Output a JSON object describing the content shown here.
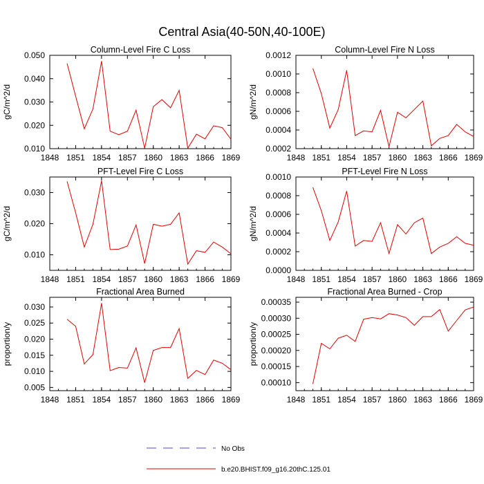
{
  "figure": {
    "title": "Central Asia(40-50N,40-100E)"
  },
  "legend": {
    "placement": "bottom-center",
    "items": [
      {
        "label": "No Obs",
        "color": "#4a4ad8",
        "style": "dashed"
      },
      {
        "label": "b.e20.BHIST.f09_g16.20thC.125.01",
        "color": "#e00000",
        "style": "solid"
      }
    ]
  },
  "chart_data": [
    {
      "type": "line",
      "title": "Column-Level Fire C Loss",
      "ylabel": "gC/m^2/d",
      "xlabel": "",
      "xlim": [
        1848,
        1869
      ],
      "ylim": [
        0.01,
        0.05
      ],
      "x_ticks": [
        "1848",
        "1851",
        "1854",
        "1857",
        "1860",
        "1863",
        "1866",
        "1869"
      ],
      "y_ticks": [
        "0.010",
        "0.020",
        "0.030",
        "0.040",
        "0.050"
      ],
      "series": [
        {
          "color": "#e00000",
          "x": [
            1850,
            1851,
            1852,
            1853,
            1854,
            1855,
            1856,
            1857,
            1858,
            1859,
            1860,
            1861,
            1862,
            1863,
            1864,
            1865,
            1866,
            1867,
            1868,
            1869
          ],
          "values": [
            0.0465,
            0.0325,
            0.0185,
            0.027,
            0.0475,
            0.0175,
            0.016,
            0.0175,
            0.0265,
            0.0102,
            0.028,
            0.031,
            0.0275,
            0.035,
            0.0102,
            0.0162,
            0.0142,
            0.0198,
            0.019,
            0.014
          ]
        }
      ]
    },
    {
      "type": "line",
      "title": "Column-Level Fire N Loss",
      "ylabel": "gN/m^2/d",
      "xlabel": "",
      "xlim": [
        1848,
        1869
      ],
      "ylim": [
        0.0002,
        0.0012
      ],
      "x_ticks": [
        "1848",
        "1851",
        "1854",
        "1857",
        "1860",
        "1863",
        "1866",
        "1869"
      ],
      "y_ticks": [
        "0.0002",
        "0.0004",
        "0.0006",
        "0.0008",
        "0.0010",
        "0.0012"
      ],
      "series": [
        {
          "color": "#e00000",
          "x": [
            1850,
            1851,
            1852,
            1853,
            1854,
            1855,
            1856,
            1857,
            1858,
            1859,
            1860,
            1861,
            1862,
            1863,
            1864,
            1865,
            1866,
            1867,
            1868,
            1869
          ],
          "values": [
            0.00106,
            0.00079,
            0.00042,
            0.00062,
            0.00104,
            0.00034,
            0.00039,
            0.00038,
            0.00061,
            0.00022,
            0.00059,
            0.00053,
            0.00062,
            0.00071,
            0.00023,
            0.00031,
            0.00034,
            0.00046,
            0.00038,
            0.00033
          ]
        }
      ]
    },
    {
      "type": "line",
      "title": "PFT-Level Fire C Loss",
      "ylabel": "gC/m^2/d",
      "xlabel": "",
      "xlim": [
        1848,
        1869
      ],
      "ylim": [
        0.005,
        0.035
      ],
      "x_ticks": [
        "1848",
        "1851",
        "1854",
        "1857",
        "1860",
        "1863",
        "1866",
        "1869"
      ],
      "y_ticks": [
        "0.010",
        "0.020",
        "0.030"
      ],
      "series": [
        {
          "color": "#e00000",
          "x": [
            1850,
            1851,
            1852,
            1853,
            1854,
            1855,
            1856,
            1857,
            1858,
            1859,
            1860,
            1861,
            1862,
            1863,
            1864,
            1865,
            1866,
            1867,
            1868,
            1869
          ],
          "values": [
            0.0336,
            0.0235,
            0.0125,
            0.0198,
            0.0338,
            0.0117,
            0.0118,
            0.0128,
            0.0196,
            0.0072,
            0.0198,
            0.0192,
            0.0198,
            0.0235,
            0.007,
            0.0113,
            0.0108,
            0.0141,
            0.0125,
            0.0103
          ]
        }
      ]
    },
    {
      "type": "line",
      "title": "PFT-Level Fire N Loss",
      "ylabel": "gN/m^2/d",
      "xlabel": "",
      "xlim": [
        1848,
        1869
      ],
      "ylim": [
        0.0,
        0.001
      ],
      "x_ticks": [
        "1848",
        "1851",
        "1854",
        "1857",
        "1860",
        "1863",
        "1866",
        "1869"
      ],
      "y_ticks": [
        "0.0000",
        "0.0002",
        "0.0004",
        "0.0006",
        "0.0008",
        "0.0010"
      ],
      "series": [
        {
          "color": "#e00000",
          "x": [
            1850,
            1851,
            1852,
            1853,
            1854,
            1855,
            1856,
            1857,
            1858,
            1859,
            1860,
            1861,
            1862,
            1863,
            1864,
            1865,
            1866,
            1867,
            1868,
            1869
          ],
          "values": [
            0.00089,
            0.00064,
            0.00032,
            0.00052,
            0.00085,
            0.00026,
            0.00032,
            0.00031,
            0.00051,
            0.00018,
            0.00049,
            0.00039,
            0.00051,
            0.00056,
            0.00018,
            0.00025,
            0.00029,
            0.00036,
            0.00029,
            0.00027
          ]
        }
      ]
    },
    {
      "type": "line",
      "title": "Fractional Area Burned",
      "ylabel": "proportion/y",
      "xlabel": "",
      "xlim": [
        1848,
        1869
      ],
      "ylim": [
        0.004,
        0.033
      ],
      "x_ticks": [
        "1848",
        "1851",
        "1854",
        "1857",
        "1860",
        "1863",
        "1866",
        "1869"
      ],
      "y_ticks": [
        "0.005",
        "0.010",
        "0.015",
        "0.020",
        "0.025",
        "0.030"
      ],
      "series": [
        {
          "color": "#e00000",
          "x": [
            1850,
            1851,
            1852,
            1853,
            1854,
            1855,
            1856,
            1857,
            1858,
            1859,
            1860,
            1861,
            1862,
            1863,
            1864,
            1865,
            1866,
            1867,
            1868,
            1869
          ],
          "values": [
            0.0262,
            0.024,
            0.0123,
            0.0152,
            0.0312,
            0.0102,
            0.0112,
            0.011,
            0.0173,
            0.0065,
            0.0165,
            0.0174,
            0.0174,
            0.0233,
            0.0078,
            0.0103,
            0.009,
            0.0135,
            0.0125,
            0.0105
          ]
        }
      ]
    },
    {
      "type": "line",
      "title": "Fractional Area Burned - Crop",
      "ylabel": "proportion/y",
      "xlabel": "",
      "xlim": [
        1848,
        1869
      ],
      "ylim": [
        7.5e-05,
        0.000365
      ],
      "x_ticks": [
        "1848",
        "1851",
        "1854",
        "1857",
        "1860",
        "1863",
        "1866",
        "1869"
      ],
      "y_ticks": [
        "0.00010",
        "0.00015",
        "0.00020",
        "0.00025",
        "0.00030",
        "0.00035"
      ],
      "series": [
        {
          "color": "#e00000",
          "x": [
            1850,
            1851,
            1852,
            1853,
            1854,
            1855,
            1856,
            1857,
            1858,
            1859,
            1860,
            1861,
            1862,
            1863,
            1864,
            1865,
            1866,
            1867,
            1868,
            1869
          ],
          "values": [
            9.6e-05,
            0.000222,
            0.000205,
            0.000238,
            0.000247,
            0.000228,
            0.000297,
            0.000302,
            0.000298,
            0.000314,
            0.00031,
            0.000302,
            0.000278,
            0.000305,
            0.000305,
            0.000327,
            0.00026,
            0.000293,
            0.000326,
            0.000335
          ]
        }
      ]
    }
  ]
}
